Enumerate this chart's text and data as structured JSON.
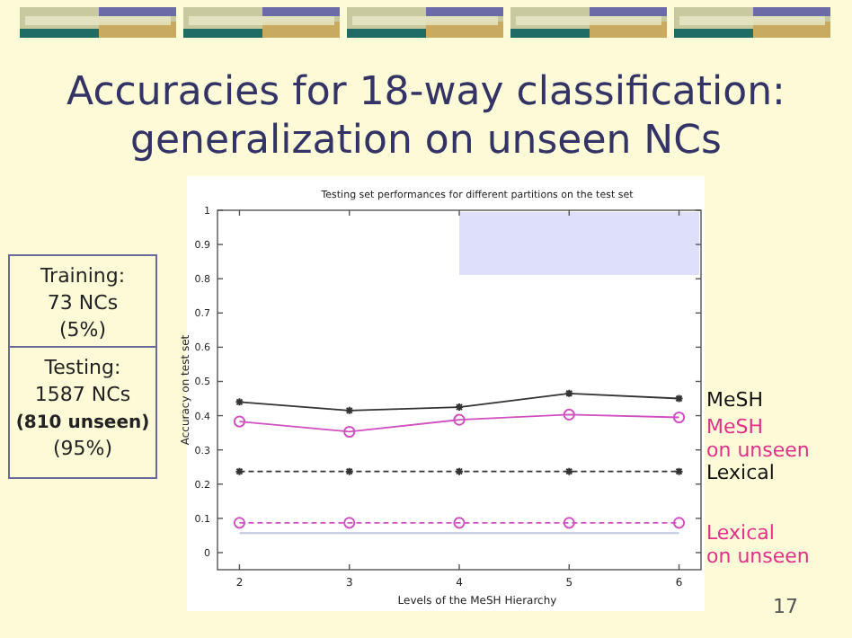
{
  "chart_data": {
    "type": "line",
    "title": "Accuracies for 18-way classification:\ngeneralization on unseen NCs",
    "subtitle": "Testing set  performances for different partitions on the test set",
    "xlabel": "Levels of the MeSH Hierarchy",
    "ylabel": "Accuracy on test set",
    "x": [
      2,
      3,
      4,
      5,
      6
    ],
    "series": [
      {
        "name": "MeSH",
        "color": "#333333",
        "values": [
          0.44,
          0.415,
          0.425,
          0.465,
          0.45
        ],
        "marker": "cross",
        "line_style": "solid"
      },
      {
        "name": "MeSH on unseen",
        "color": "#d050c0",
        "values": [
          0.383,
          0.353,
          0.388,
          0.403,
          0.395
        ],
        "marker": "circle",
        "line_style": "solid"
      },
      {
        "name": "Lexical",
        "color": "#333333",
        "values": [
          0.237,
          0.237,
          0.237,
          0.237,
          0.237
        ],
        "marker": "cross",
        "line_style": "dashed"
      },
      {
        "name": "Lexical on unseen",
        "color": "#d050c0",
        "values": [
          0.087,
          0.087,
          0.087,
          0.087,
          0.087
        ],
        "marker": "circle",
        "line_style": "dashed"
      },
      {
        "color": "#c0c8e0",
        "values": [
          0.057,
          0.057,
          0.057,
          0.057,
          0.057
        ],
        "marker": "none",
        "line_style": "solid"
      }
    ],
    "xlim": [
      1.8,
      6.2
    ],
    "ylim": [
      -0.05,
      1
    ],
    "xticks": [
      2,
      3,
      4,
      5,
      6
    ],
    "yticks": [
      0,
      0.1,
      0.2,
      0.3,
      0.4,
      0.5,
      0.6,
      0.7,
      0.8,
      0.9,
      1
    ],
    "grid": false,
    "legend": "right",
    "annotations": [
      "Training:",
      "73 NCs",
      "(5%)",
      "Testing:",
      "1587 NCs",
      "(810 unseen)",
      "(95%)",
      "17"
    ]
  }
}
